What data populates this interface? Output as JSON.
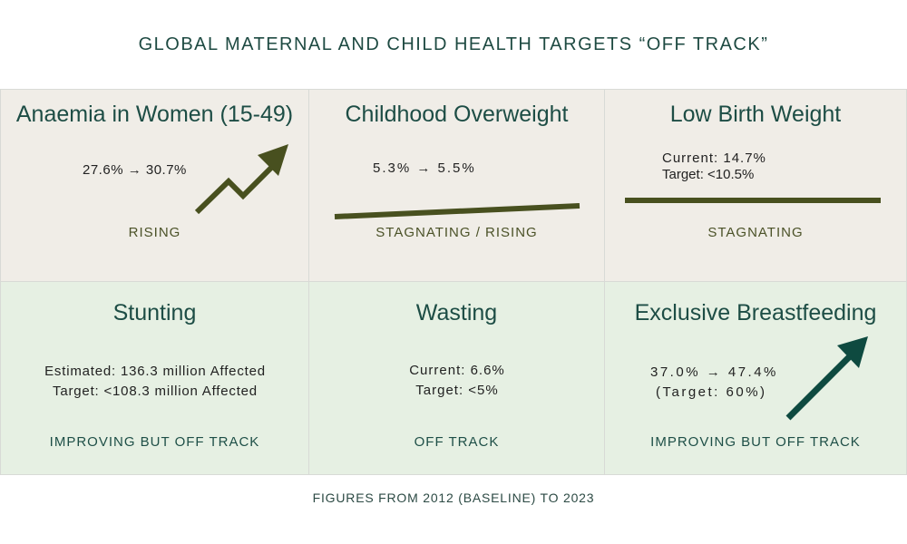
{
  "title": "GLOBAL MATERNAL AND CHILD HEALTH TARGETS “OFF TRACK”",
  "footer": "FIGURES FROM 2012 (BASELINE) TO 2023",
  "colors": {
    "top_row_bg": "#f0ede7",
    "bottom_row_bg": "#e6f0e3",
    "title": "#1d4d45",
    "olive_indicator": "#48501f",
    "green_indicator": "#0e4a40"
  },
  "cards": [
    {
      "title": "Anaemia in Women (15-49)",
      "lines": [
        "27.6% → 30.7%"
      ],
      "status": "RISING",
      "icon": "zigzag-up-arrow-icon"
    },
    {
      "title": "Childhood Overweight",
      "lines": [
        "5.3% → 5.5%"
      ],
      "status": "STAGNATING / RISING",
      "icon": "slight-rising-line-icon"
    },
    {
      "title": "Low Birth Weight",
      "lines": [
        "Current: 14.7%",
        "Target: <10.5%"
      ],
      "status": "STAGNATING",
      "icon": "flat-line-icon"
    },
    {
      "title": "Stunting",
      "lines": [
        "Estimated: 136.3 million Affected",
        "Target: <108.3 million Affected"
      ],
      "status": "IMPROVING BUT OFF TRACK"
    },
    {
      "title": "Wasting",
      "lines": [
        "Current: 6.6%",
        "Target: <5%"
      ],
      "status": "OFF TRACK"
    },
    {
      "title": "Exclusive Breastfeeding",
      "lines": [
        "37.0% → 47.4%",
        "(Target: 60%)"
      ],
      "status": "IMPROVING BUT OFF TRACK",
      "icon": "up-arrow-icon"
    }
  ]
}
